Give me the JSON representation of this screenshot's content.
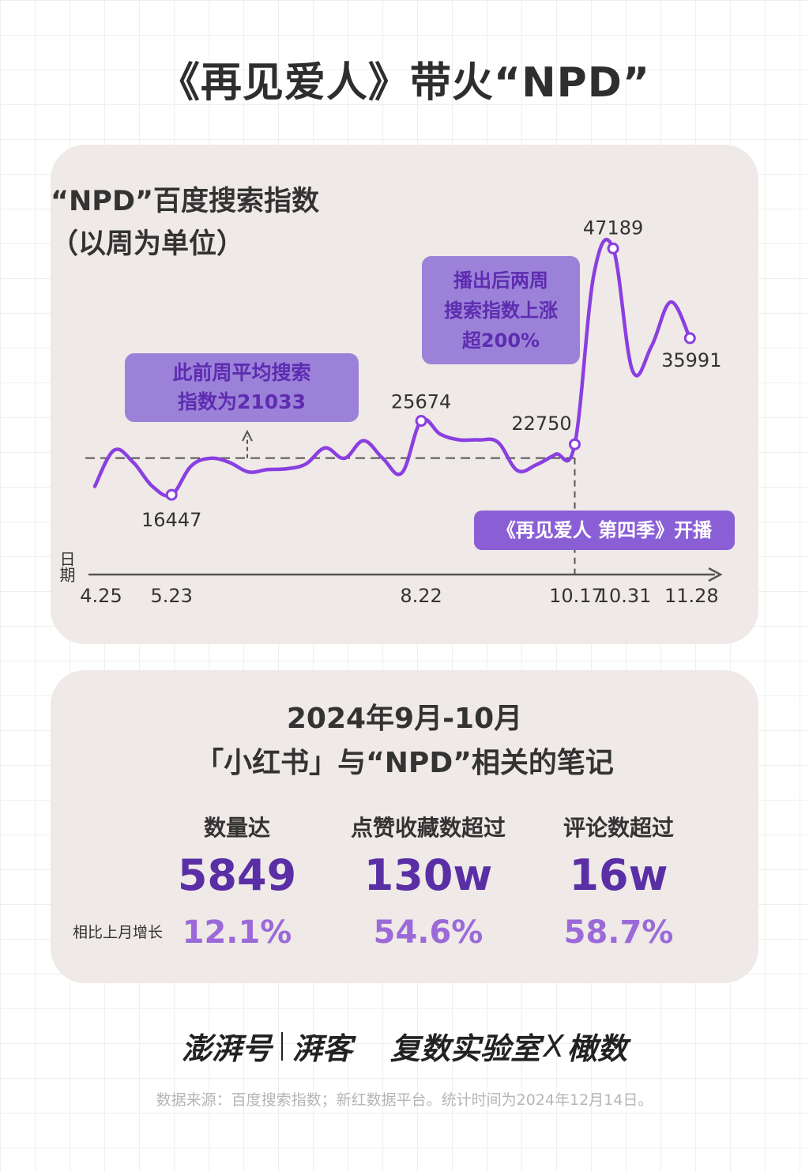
{
  "title": "《再见爱人》带火“NPD”",
  "chart_title": "“NPD”百度搜索指数\n（以周为单位）",
  "chart_data": {
    "type": "line",
    "title": "“NPD”百度搜索指数（以周为单位）",
    "xlabel": "日期",
    "ylabel": "",
    "x_tick_labels": [
      "4.25",
      "5.23",
      "8.22",
      "10.17",
      "10.31",
      "11.28"
    ],
    "x_ticks_week_index": [
      0,
      4,
      17,
      25,
      27,
      31
    ],
    "ylim": [
      13500,
      49000
    ],
    "series": [
      {
        "name": "",
        "x_week_index": [
          0,
          1,
          2,
          3,
          4,
          5,
          6,
          7,
          8,
          9,
          10,
          11,
          12,
          13,
          14,
          15,
          16,
          17,
          18,
          19,
          20,
          21,
          22,
          23,
          24,
          25,
          26,
          27,
          28,
          29,
          30,
          31
        ],
        "values": [
          17500,
          22000,
          20500,
          17500,
          16447,
          20000,
          21000,
          20500,
          19300,
          19600,
          19700,
          20300,
          22300,
          21000,
          23200,
          21000,
          19200,
          25674,
          24000,
          23300,
          23300,
          23000,
          19500,
          20200,
          21500,
          22750,
          44000,
          47189,
          32000,
          35000,
          40500,
          35991
        ]
      }
    ],
    "data_labels": [
      {
        "x_week_index": 4,
        "text": "16447"
      },
      {
        "x_week_index": 17,
        "text": "25674"
      },
      {
        "x_week_index": 25,
        "text": "22750"
      },
      {
        "x_week_index": 27,
        "text": "47189"
      },
      {
        "x_week_index": 31,
        "text": "35991"
      }
    ],
    "reference_line": {
      "value": 21033,
      "to_week_index": 25
    }
  },
  "callouts": {
    "average": "此前周平均搜索\n指数为21033",
    "growth": "播出后两周\n搜索指数上涨\n超200%",
    "premiere": "《再见爱人 第四季》开播"
  },
  "stats": {
    "title_line1": "2024年9月-10月",
    "title_line2": "「小红书」与“NPD”相关的笔记",
    "growth_label": "相比上月增长",
    "items": [
      {
        "label": "数量达",
        "value": "5849",
        "growth": "12.1%"
      },
      {
        "label": "点赞收藏数超过",
        "value": "130w",
        "growth": "54.6%"
      },
      {
        "label": "评论数超过",
        "value": "16w",
        "growth": "58.7%"
      }
    ]
  },
  "logos": {
    "logo1": "澎湃号",
    "logo2": "湃客",
    "logo3": "复数实验室",
    "logo_x": "X",
    "logo4": "橄数"
  },
  "source": "数据来源：百度搜索指数；新红数据平台。统计时间为2024年12月14日。",
  "colors": {
    "line": "#8a3fe0",
    "card_bg": "#efe9e7",
    "callout_bg": "#9b82d8",
    "callout_text": "#5e2cb0",
    "premiere_bg": "#8a5fd6",
    "stat_value": "#5a2fa6",
    "stat_growth": "#9b6ad8"
  }
}
